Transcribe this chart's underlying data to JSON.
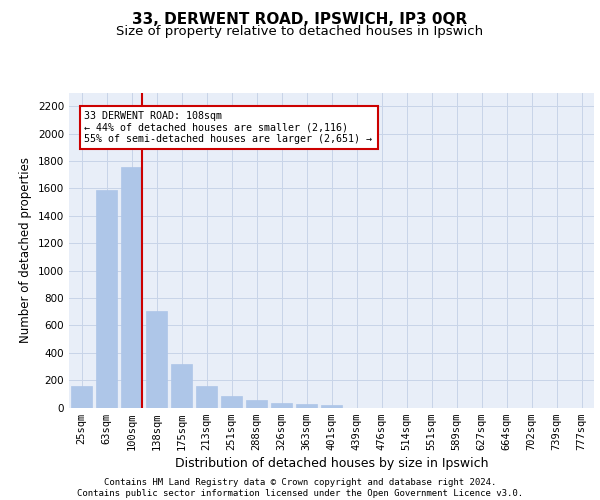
{
  "title1": "33, DERWENT ROAD, IPSWICH, IP3 0QR",
  "title2": "Size of property relative to detached houses in Ipswich",
  "xlabel": "Distribution of detached houses by size in Ipswich",
  "ylabel": "Number of detached properties",
  "categories": [
    "25sqm",
    "63sqm",
    "100sqm",
    "138sqm",
    "175sqm",
    "213sqm",
    "251sqm",
    "288sqm",
    "326sqm",
    "363sqm",
    "401sqm",
    "439sqm",
    "476sqm",
    "514sqm",
    "551sqm",
    "589sqm",
    "627sqm",
    "664sqm",
    "702sqm",
    "739sqm",
    "777sqm"
  ],
  "values": [
    155,
    1585,
    1755,
    705,
    315,
    160,
    85,
    52,
    30,
    22,
    15,
    0,
    0,
    0,
    0,
    0,
    0,
    0,
    0,
    0,
    0
  ],
  "bar_color": "#aec6e8",
  "bar_edgecolor": "#aec6e8",
  "vline_color": "#cc0000",
  "annotation_text": "33 DERWENT ROAD: 108sqm\n← 44% of detached houses are smaller (2,116)\n55% of semi-detached houses are larger (2,651) →",
  "annotation_box_facecolor": "white",
  "annotation_box_edgecolor": "#cc0000",
  "ylim": [
    0,
    2300
  ],
  "yticks": [
    0,
    200,
    400,
    600,
    800,
    1000,
    1200,
    1400,
    1600,
    1800,
    2000,
    2200
  ],
  "grid_color": "#c8d4e8",
  "background_color": "#e8eef8",
  "footer_text": "Contains HM Land Registry data © Crown copyright and database right 2024.\nContains public sector information licensed under the Open Government Licence v3.0.",
  "title1_fontsize": 11,
  "title2_fontsize": 9.5,
  "xlabel_fontsize": 9,
  "ylabel_fontsize": 8.5,
  "tick_fontsize": 7.5,
  "footer_fontsize": 6.5
}
